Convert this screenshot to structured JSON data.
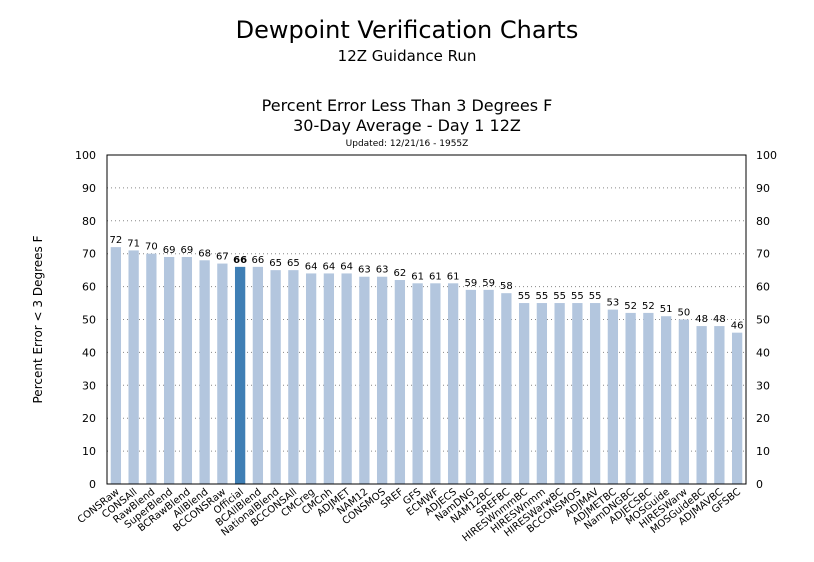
{
  "header": {
    "title": "Dewpoint Verification Charts",
    "subtitle": "12Z Guidance Run",
    "chart_title_line1": "Percent Error Less Than 3 Degrees F",
    "chart_title_line2": "30-Day Average - Day 1 12Z",
    "updated": "Updated: 12/21/16 - 1955Z"
  },
  "chart_data": {
    "type": "bar",
    "title": "Percent Error Less Than 3 Degrees F",
    "subtitle": "30-Day Average - Day 1 12Z",
    "xlabel": "",
    "ylabel": "Percent Error < 3 Degrees F",
    "ylim": [
      0,
      100
    ],
    "yticks": [
      0,
      10,
      20,
      30,
      40,
      50,
      60,
      70,
      80,
      90,
      100
    ],
    "grid": "horizontal dotted",
    "highlight": "Official",
    "colors": {
      "bar": "#b3c6de",
      "highlight": "#3f7fb5"
    },
    "categories": [
      "CONSRaw",
      "CONSAll",
      "RawBlend",
      "SuperBlend",
      "BCRawBlend",
      "AllBlend",
      "BCCONSRaw",
      "Official",
      "BCAllBlend",
      "NationalBlend",
      "BCCONSAll",
      "CMCreg",
      "CMCnh",
      "ADJMET",
      "NAM12",
      "CONSMOS",
      "SREF",
      "GFS",
      "ECMWF",
      "ADJECS",
      "NamDNG",
      "NAM12BC",
      "SREFBC",
      "HIRESWnmmBC",
      "HIRESWnmm",
      "HIRESWarwBC",
      "BCCONSMOS",
      "ADJMAV",
      "ADJMETBC",
      "NamDNGBC",
      "ADJECSBC",
      "MOSGuide",
      "HIRESWarw",
      "MOSGuideBC",
      "ADJMAVBC",
      "GFSBC"
    ],
    "values": [
      72,
      71,
      70,
      69,
      69,
      68,
      67,
      66,
      66,
      65,
      65,
      64,
      64,
      64,
      63,
      63,
      62,
      61,
      61,
      61,
      59,
      59,
      58,
      55,
      55,
      55,
      55,
      55,
      53,
      52,
      52,
      51,
      50,
      48,
      48,
      46
    ]
  }
}
